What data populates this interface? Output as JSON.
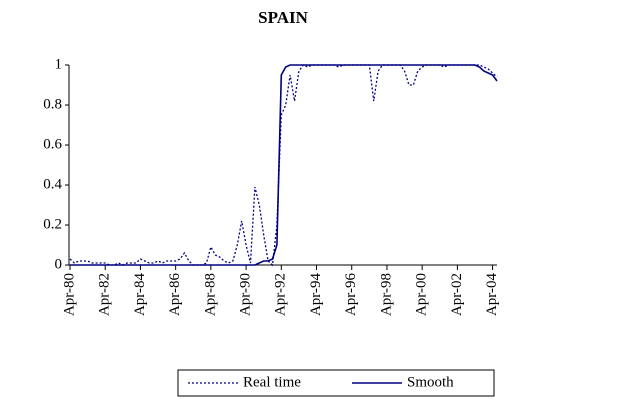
{
  "chart_data": {
    "type": "line",
    "title": "SPAIN",
    "categories": [
      "Apr-80",
      null,
      null,
      null,
      null,
      null,
      null,
      null,
      "Apr-82",
      null,
      null,
      null,
      null,
      null,
      null,
      null,
      "Apr-84",
      null,
      null,
      null,
      null,
      null,
      null,
      null,
      "Apr-86",
      null,
      null,
      null,
      null,
      null,
      null,
      null,
      "Apr-88",
      null,
      null,
      null,
      null,
      null,
      null,
      null,
      "Apr-90",
      null,
      null,
      null,
      null,
      null,
      null,
      null,
      "Apr-92",
      null,
      null,
      null,
      null,
      null,
      null,
      null,
      "Apr-94",
      null,
      null,
      null,
      null,
      null,
      null,
      null,
      "Apr-96",
      null,
      null,
      null,
      null,
      null,
      null,
      null,
      "Apr-98",
      null,
      null,
      null,
      null,
      null,
      null,
      null,
      "Apr-00",
      null,
      null,
      null,
      null,
      null,
      null,
      null,
      "Apr-02",
      null,
      null,
      null,
      null,
      null,
      null,
      null,
      "Apr-04",
      null
    ],
    "series": [
      {
        "name": "Real time",
        "color": "#000080",
        "dash": true,
        "values": [
          0.03,
          0.01,
          0.02,
          0.02,
          0.02,
          0.01,
          0.01,
          0.01,
          0.01,
          0,
          0,
          0.01,
          0,
          0.01,
          0.01,
          0.01,
          0.03,
          0.02,
          0.01,
          0.01,
          0.02,
          0.01,
          0.02,
          0.02,
          0.02,
          0.03,
          0.06,
          0.02,
          0,
          0,
          0,
          0.01,
          0.09,
          0.05,
          0.04,
          0.02,
          0.01,
          0.02,
          0.1,
          0.22,
          0.1,
          0.01,
          0.39,
          0.3,
          0.15,
          0.02,
          0,
          0.2,
          0.75,
          0.8,
          0.95,
          0.82,
          0.97,
          1,
          0.99,
          1,
          1,
          1,
          1,
          1,
          1,
          0.99,
          1,
          1,
          1,
          1,
          1,
          1,
          1,
          0.82,
          0.97,
          1,
          1,
          1,
          1,
          1,
          0.97,
          0.9,
          0.9,
          0.97,
          0.99,
          1,
          1,
          1,
          1,
          0.99,
          1,
          1,
          1,
          1,
          1,
          1,
          1,
          1,
          0.99,
          0.98,
          0.96,
          0.94
        ]
      },
      {
        "name": "Smooth",
        "color": "#000080",
        "dash": false,
        "values": [
          0,
          0,
          0,
          0,
          0,
          0,
          0,
          0,
          0,
          0,
          0,
          0,
          0,
          0,
          0,
          0,
          0,
          0,
          0,
          0,
          0,
          0,
          0,
          0,
          0,
          0,
          0,
          0,
          0,
          0,
          0,
          0,
          0,
          0,
          0,
          0,
          0,
          0,
          0,
          0,
          0,
          0,
          0,
          0.01,
          0.02,
          0.02,
          0.03,
          0.1,
          0.95,
          0.99,
          1,
          1,
          1,
          1,
          1,
          1,
          1,
          1,
          1,
          1,
          1,
          1,
          1,
          1,
          1,
          1,
          1,
          1,
          1,
          1,
          1,
          1,
          1,
          1,
          1,
          1,
          1,
          1,
          1,
          1,
          1,
          1,
          1,
          1,
          1,
          1,
          1,
          1,
          1,
          1,
          1,
          1,
          1,
          0.99,
          0.97,
          0.96,
          0.95,
          0.92
        ]
      }
    ],
    "ylim": [
      0,
      1
    ],
    "yticks": [
      0,
      0.2,
      0.4,
      0.6,
      0.8,
      1
    ],
    "grid": false
  }
}
